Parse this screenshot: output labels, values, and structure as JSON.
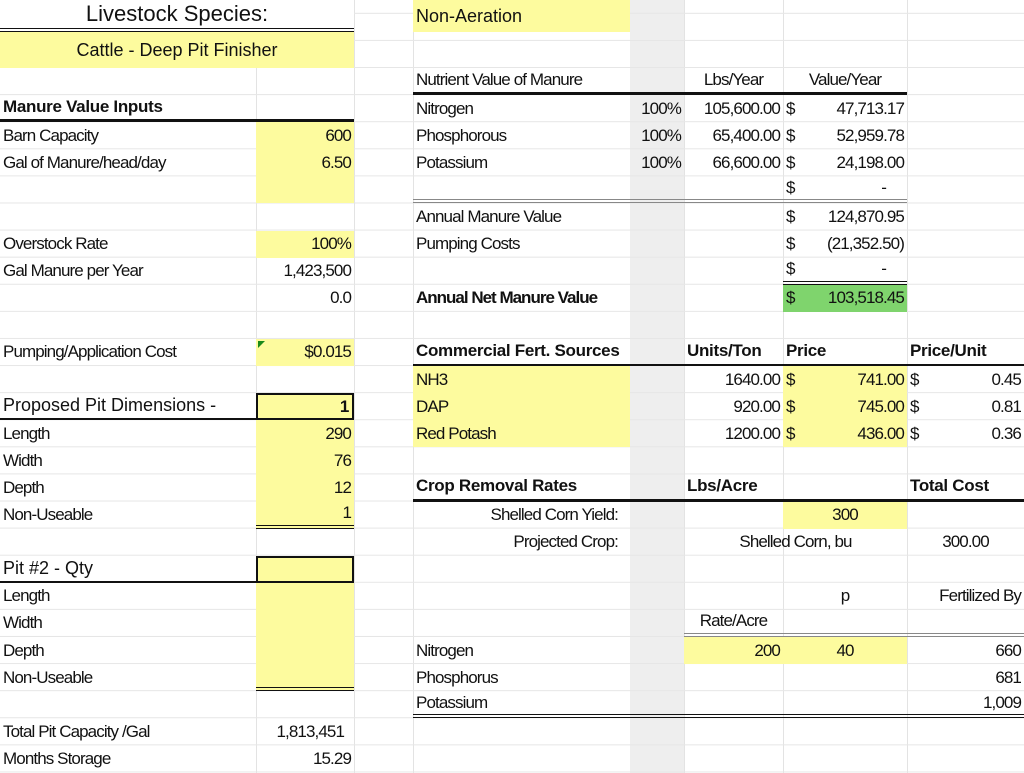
{
  "header": {
    "title": "Livestock Species:",
    "species": "Cattle -  Deep Pit Finisher",
    "system": "Non-Aeration"
  },
  "inputs": {
    "heading": "Manure Value Inputs",
    "barn_capacity": {
      "label": "Barn Capacity",
      "value": "600"
    },
    "gal_per_head": {
      "label": "Gal of Manure/head/day",
      "value": "6.50"
    },
    "overstock": {
      "label": "Overstock Rate",
      "value": "100%"
    },
    "gal_per_year": {
      "label": "Gal Manure per Year",
      "value": "1,423,500"
    },
    "extra": "0.0",
    "pumping_cost": {
      "label": "Pumping/Application Cost",
      "value": "$0.015"
    }
  },
  "pit1": {
    "label": "Proposed Pit Dimensions -",
    "qty": "1",
    "rows": [
      {
        "label": "Length",
        "value": "290"
      },
      {
        "label": "Width",
        "value": "76"
      },
      {
        "label": "Depth",
        "value": "12"
      },
      {
        "label": "Non-Useable",
        "value": "1"
      }
    ]
  },
  "pit2": {
    "label": "Pit #2 -  Qty",
    "rows": [
      {
        "label": "Length"
      },
      {
        "label": "Width"
      },
      {
        "label": "Depth"
      },
      {
        "label": "Non-Useable"
      }
    ]
  },
  "totals": {
    "capacity": {
      "label": "Total Pit Capacity /Gal",
      "value": "1,813,451"
    },
    "months": {
      "label": "Months Storage",
      "value": "15.29"
    }
  },
  "nutrients": {
    "heading": "Nutrient Value of Manure",
    "col_lbs": "Lbs/Year",
    "col_value": "Value/Year",
    "rows": [
      {
        "name": "Nitrogen",
        "pct": "100%",
        "lbs": "105,600.00",
        "cur": "$",
        "value": "47,713.17"
      },
      {
        "name": "Phosphorous",
        "pct": "100%",
        "lbs": "65,400.00",
        "cur": "$",
        "value": "52,959.78"
      },
      {
        "name": "Potassium",
        "pct": "100%",
        "lbs": "66,600.00",
        "cur": "$",
        "value": "24,198.00"
      },
      {
        "name": "",
        "pct": "",
        "lbs": "",
        "cur": "$",
        "value": "-"
      }
    ],
    "annual": {
      "label": "Annual Manure Value",
      "cur": "$",
      "value": "124,870.95"
    },
    "pumping": {
      "label": "Pumping Costs",
      "cur": "$",
      "value": "(21,352.50)"
    },
    "blank": {
      "cur": "$",
      "value": "-"
    },
    "net": {
      "label": "Annual Net Manure Value",
      "cur": "$",
      "value": "103,518.45"
    }
  },
  "fert": {
    "heading": "Commercial Fert. Sources",
    "col_units": "Units/Ton",
    "col_price": "Price",
    "col_unit_price": "Price/Unit",
    "rows": [
      {
        "name": "NH3",
        "units": "1640.00",
        "cur": "$",
        "price": "741.00",
        "unit_price": "0.45"
      },
      {
        "name": "DAP",
        "units": "920.00",
        "cur": "$",
        "price": "745.00",
        "unit_price": "0.81"
      },
      {
        "name": "Red Potash",
        "units": "1200.00",
        "cur": "$",
        "price": "436.00",
        "unit_price": "0.36"
      }
    ]
  },
  "crop": {
    "heading": "Crop Removal Rates",
    "col_lbs": "Lbs/Acre",
    "col_total": "Total Cost",
    "yield_label": "Shelled Corn Yield:",
    "yield_value": "300",
    "projected_label": "Projected Crop:",
    "projected_value": "Shelled Corn, bu",
    "projected_total": "300.00",
    "col_p": "p",
    "col_fertilized": "Fertilized By",
    "col_rate": "Rate/Acre",
    "rows": [
      {
        "name": "Nitrogen",
        "rate": "200",
        "p": "40",
        "total": "660"
      },
      {
        "name": "Phosphorus",
        "rate": "",
        "p": "",
        "total": "681"
      },
      {
        "name": "Potassium",
        "rate": "",
        "p": "",
        "total": "1,009"
      }
    ]
  }
}
